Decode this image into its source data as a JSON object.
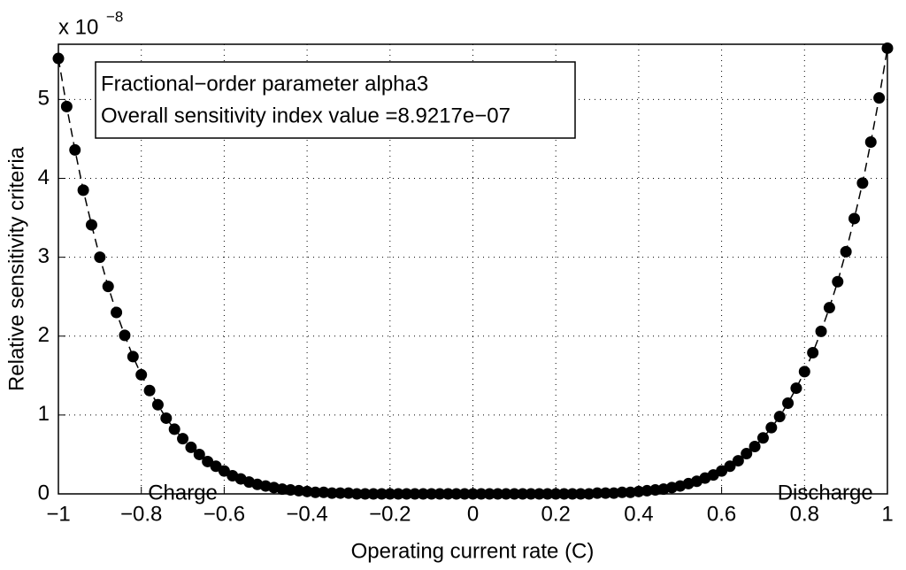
{
  "chart_data": {
    "type": "scatter-line",
    "xlabel": "Operating current rate (C)",
    "ylabel": "Relative sensitivity criteria",
    "y_multiplier": "x 10",
    "y_multiplier_exp": "−8",
    "legend_lines": [
      "Fractional−order parameter alpha3",
      "Overall sensitivity index value =8.9217e−07"
    ],
    "annotations": [
      {
        "text": "Charge",
        "x": -0.7,
        "y": 0.2
      },
      {
        "text": "Discharge",
        "x": 0.85,
        "y": 0.2
      }
    ],
    "color": "#000000",
    "grid": true,
    "xlim": [
      -1,
      1
    ],
    "ylim": [
      0,
      5.7
    ],
    "xticks": [
      {
        "value": -1,
        "label": "−1"
      },
      {
        "value": -0.8,
        "label": "−0.8"
      },
      {
        "value": -0.6,
        "label": "−0.6"
      },
      {
        "value": -0.4,
        "label": "−0.4"
      },
      {
        "value": -0.2,
        "label": "−0.2"
      },
      0,
      0.2,
      0.4,
      0.6,
      0.8,
      1
    ],
    "yticks": [
      0,
      1,
      2,
      3,
      4,
      5
    ],
    "x": [
      -1,
      -0.98,
      -0.96,
      -0.94,
      -0.92,
      -0.9,
      -0.88,
      -0.86,
      -0.84,
      -0.82,
      -0.8,
      -0.78,
      -0.76,
      -0.74,
      -0.72,
      -0.7,
      -0.68,
      -0.66,
      -0.64,
      -0.62,
      -0.6,
      -0.58,
      -0.56,
      -0.54,
      -0.52,
      -0.5,
      -0.48,
      -0.46,
      -0.44,
      -0.42,
      -0.4,
      -0.38,
      -0.36,
      -0.34,
      -0.32,
      -0.3,
      -0.28,
      -0.26,
      -0.24,
      -0.22,
      -0.2,
      -0.18,
      -0.16,
      -0.14,
      -0.12,
      -0.1,
      -0.08,
      -0.06,
      -0.04,
      -0.02,
      0,
      0.02,
      0.04,
      0.06,
      0.08,
      0.1,
      0.12,
      0.14,
      0.16,
      0.18,
      0.2,
      0.22,
      0.24,
      0.26,
      0.28,
      0.3,
      0.32,
      0.34,
      0.36,
      0.38,
      0.4,
      0.42,
      0.44,
      0.46,
      0.48,
      0.5,
      0.52,
      0.54,
      0.56,
      0.58,
      0.6,
      0.62,
      0.64,
      0.66,
      0.68,
      0.7,
      0.72,
      0.74,
      0.76,
      0.78,
      0.8,
      0.82,
      0.84,
      0.86,
      0.88,
      0.9,
      0.92,
      0.94,
      0.96,
      0.98,
      1
    ],
    "values": [
      5.52,
      4.91,
      4.36,
      3.85,
      3.41,
      3.0,
      2.63,
      2.3,
      2.01,
      1.74,
      1.51,
      1.31,
      1.13,
      0.96,
      0.82,
      0.7,
      0.59,
      0.5,
      0.41,
      0.35,
      0.29,
      0.23,
      0.19,
      0.15,
      0.12,
      0.1,
      0.08,
      0.06,
      0.05,
      0.04,
      0.03,
      0.02,
      0.02,
      0.01,
      0.01,
      0.01,
      0,
      0,
      0,
      0,
      0,
      0,
      0,
      0,
      0,
      0,
      0,
      0,
      0,
      0,
      0,
      0,
      0,
      0,
      0,
      0,
      0,
      0,
      0,
      0,
      0,
      0,
      0,
      0,
      0,
      0.01,
      0.01,
      0.01,
      0.02,
      0.02,
      0.03,
      0.04,
      0.05,
      0.06,
      0.08,
      0.1,
      0.13,
      0.16,
      0.2,
      0.24,
      0.29,
      0.35,
      0.42,
      0.51,
      0.6,
      0.71,
      0.84,
      0.98,
      1.15,
      1.34,
      1.55,
      1.79,
      2.06,
      2.36,
      2.69,
      3.07,
      3.49,
      3.94,
      4.46,
      5.02,
      5.65
    ]
  }
}
